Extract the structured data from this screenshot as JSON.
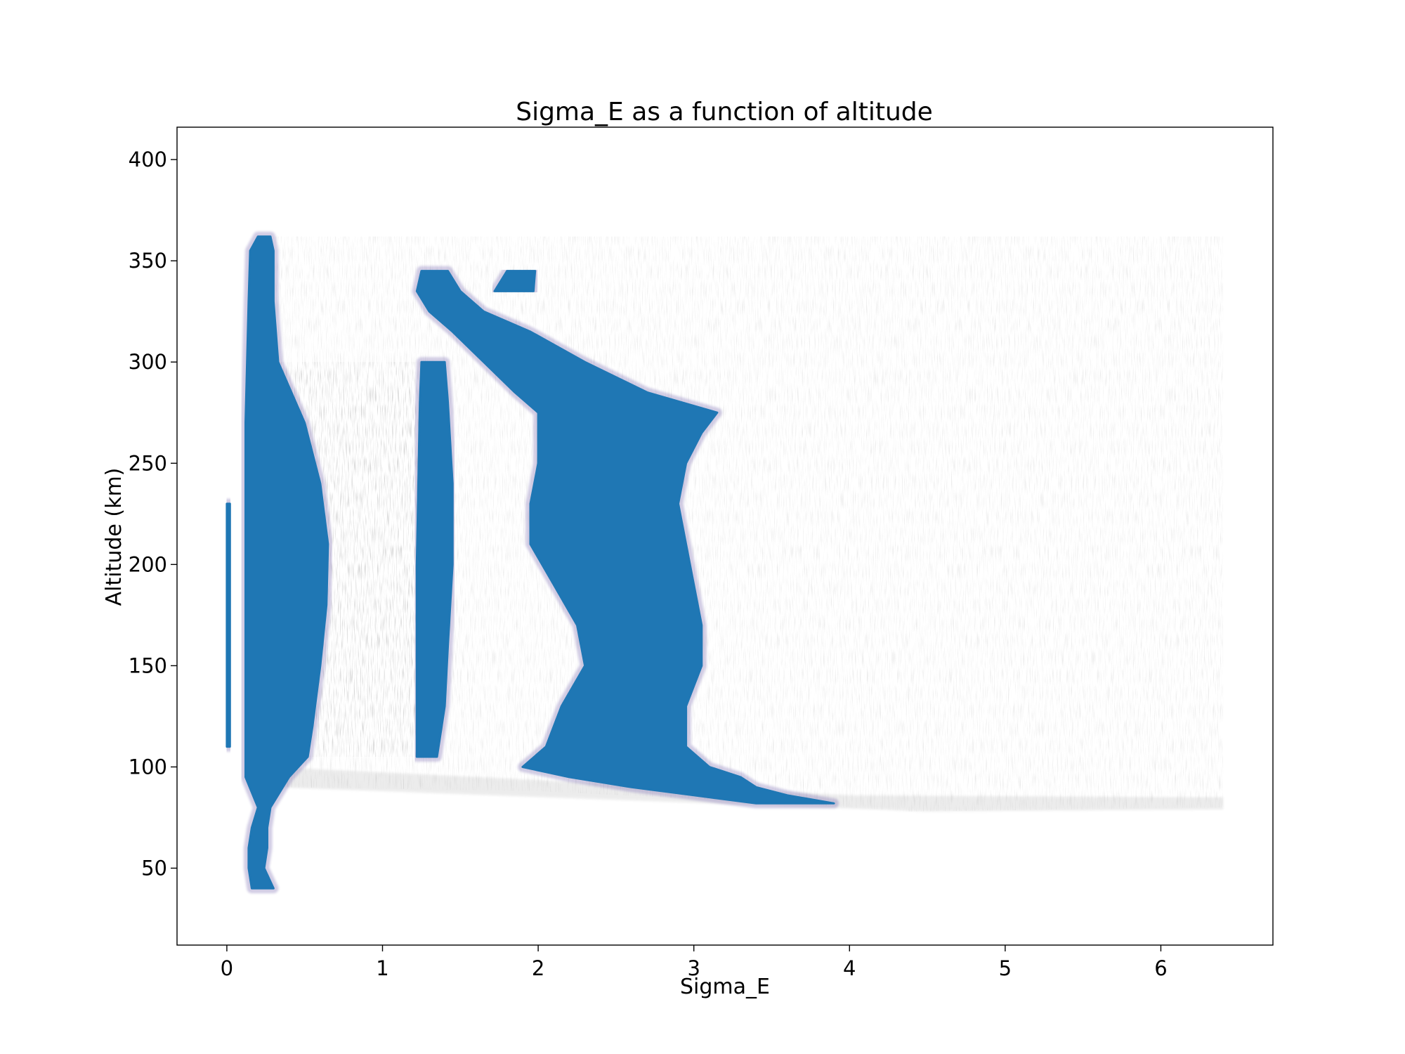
{
  "chart_data": {
    "type": "scatter",
    "title": "Sigma_E as a function of altitude",
    "xlabel": "Sigma_E",
    "ylabel": "Altitude (km)",
    "xlim": [
      -0.32,
      6.72
    ],
    "ylim": [
      12,
      416
    ],
    "xticks": [
      0,
      1,
      2,
      3,
      4,
      5,
      6
    ],
    "yticks": [
      50,
      100,
      150,
      200,
      250,
      300,
      350,
      400
    ],
    "grid": false,
    "legend": "none",
    "colors": {
      "points": "#1f77b4",
      "faint": "#6e6e6e",
      "edge": "#7e6fb4"
    },
    "series": [
      {
        "values": [
          {
            "alt": 40,
            "x_min": 0.16,
            "x_max": 0.3
          },
          {
            "alt": 50,
            "x_min": 0.14,
            "x_max": 0.24
          },
          {
            "alt": 60,
            "x_min": 0.14,
            "x_max": 0.26
          },
          {
            "alt": 70,
            "x_min": 0.16,
            "x_max": 0.26
          },
          {
            "alt": 80,
            "x_min": 0.2,
            "x_max": 0.28
          },
          {
            "alt": 95,
            "x_min": 0.12,
            "x_max": 0.4
          },
          {
            "alt": 105,
            "x_min": 0.12,
            "x_max": 0.52
          },
          {
            "alt": 120,
            "x_min": 0.12,
            "x_max": 0.55
          },
          {
            "alt": 150,
            "x_min": 0.12,
            "x_max": 0.6
          },
          {
            "alt": 180,
            "x_min": 0.12,
            "x_max": 0.64
          },
          {
            "alt": 210,
            "x_min": 0.12,
            "x_max": 0.65
          },
          {
            "alt": 240,
            "x_min": 0.12,
            "x_max": 0.6
          },
          {
            "alt": 270,
            "x_min": 0.12,
            "x_max": 0.5
          },
          {
            "alt": 300,
            "x_min": 0.13,
            "x_max": 0.33
          },
          {
            "alt": 330,
            "x_min": 0.14,
            "x_max": 0.3
          },
          {
            "alt": 355,
            "x_min": 0.15,
            "x_max": 0.3
          },
          {
            "alt": 362,
            "x_min": 0.2,
            "x_max": 0.28
          }
        ]
      },
      {
        "values": [
          {
            "alt": 82,
            "x_min": 3.4,
            "x_max": 3.9
          },
          {
            "alt": 86,
            "x_min": 3.0,
            "x_max": 3.6
          },
          {
            "alt": 90,
            "x_min": 2.6,
            "x_max": 3.4
          },
          {
            "alt": 95,
            "x_min": 2.2,
            "x_max": 3.3
          },
          {
            "alt": 100,
            "x_min": 1.9,
            "x_max": 3.1
          },
          {
            "alt": 110,
            "x_min": 2.05,
            "x_max": 2.95
          },
          {
            "alt": 130,
            "x_min": 2.15,
            "x_max": 2.95
          },
          {
            "alt": 150,
            "x_min": 2.3,
            "x_max": 3.05
          },
          {
            "alt": 170,
            "x_min": 2.25,
            "x_max": 3.05
          },
          {
            "alt": 190,
            "x_min": 2.1,
            "x_max": 3.0
          },
          {
            "alt": 210,
            "x_min": 1.95,
            "x_max": 2.95
          },
          {
            "alt": 230,
            "x_min": 1.95,
            "x_max": 2.9
          },
          {
            "alt": 250,
            "x_min": 2.0,
            "x_max": 2.95
          },
          {
            "alt": 265,
            "x_min": 2.0,
            "x_max": 3.05
          },
          {
            "alt": 275,
            "x_min": 2.0,
            "x_max": 3.15
          },
          {
            "alt": 285,
            "x_min": 1.85,
            "x_max": 2.7
          },
          {
            "alt": 300,
            "x_min": 1.65,
            "x_max": 2.3
          },
          {
            "alt": 315,
            "x_min": 1.45,
            "x_max": 1.95
          },
          {
            "alt": 325,
            "x_min": 1.3,
            "x_max": 1.65
          },
          {
            "alt": 335,
            "x_min": 1.22,
            "x_max": 1.5
          },
          {
            "alt": 345,
            "x_min": 1.25,
            "x_max": 1.42
          }
        ]
      },
      {
        "values": [
          {
            "alt": 105,
            "x_min": 1.22,
            "x_max": 1.35
          },
          {
            "alt": 130,
            "x_min": 1.22,
            "x_max": 1.4
          },
          {
            "alt": 160,
            "x_min": 1.22,
            "x_max": 1.42
          },
          {
            "alt": 200,
            "x_min": 1.22,
            "x_max": 1.45
          },
          {
            "alt": 240,
            "x_min": 1.23,
            "x_max": 1.45
          },
          {
            "alt": 280,
            "x_min": 1.24,
            "x_max": 1.42
          },
          {
            "alt": 300,
            "x_min": 1.25,
            "x_max": 1.4
          }
        ]
      },
      {
        "values": [
          {
            "alt": 335,
            "x_min": 1.72,
            "x_max": 1.97
          },
          {
            "alt": 345,
            "x_min": 1.8,
            "x_max": 1.98
          }
        ]
      },
      {
        "values": [
          {
            "alt": 110,
            "x_min": 0.0,
            "x_max": 0.02
          },
          {
            "alt": 230,
            "x_min": 0.0,
            "x_max": 0.02
          }
        ]
      }
    ]
  }
}
